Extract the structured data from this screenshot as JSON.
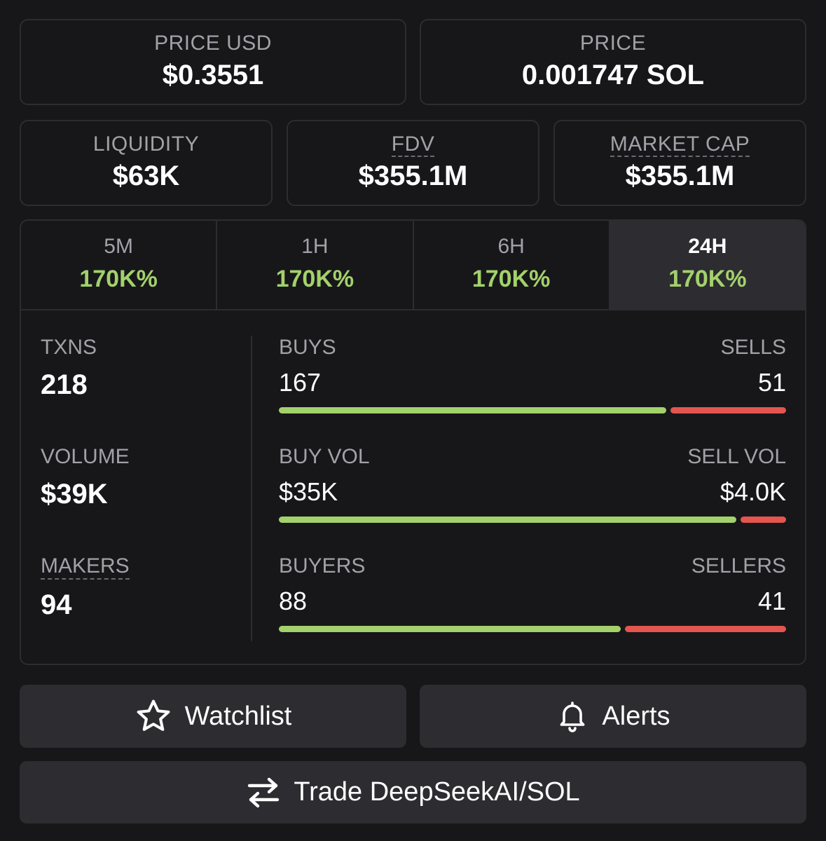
{
  "price_usd": {
    "label": "PRICE USD",
    "value": "$0.3551"
  },
  "price": {
    "label": "PRICE",
    "value": "0.001747 SOL"
  },
  "liquidity": {
    "label": "LIQUIDITY",
    "value": "$63K"
  },
  "fdv": {
    "label": "FDV",
    "value": "$355.1M"
  },
  "market_cap": {
    "label": "MARKET CAP",
    "value": "$355.1M"
  },
  "tabs": [
    {
      "label": "5M",
      "value": "170K%"
    },
    {
      "label": "1H",
      "value": "170K%"
    },
    {
      "label": "6H",
      "value": "170K%"
    },
    {
      "label": "24H",
      "value": "170K%",
      "active": true
    }
  ],
  "metrics": {
    "txns": {
      "label": "TXNS",
      "value": "218"
    },
    "volume": {
      "label": "VOLUME",
      "value": "$39K"
    },
    "makers": {
      "label": "MAKERS",
      "value": "94"
    }
  },
  "ratios": {
    "txns": {
      "left_label": "BUYS",
      "right_label": "SELLS",
      "left_value": "167",
      "right_value": "51",
      "buy_fraction": 0.77
    },
    "volume": {
      "left_label": "BUY VOL",
      "right_label": "SELL VOL",
      "left_value": "$35K",
      "right_value": "$4.0K",
      "buy_fraction": 0.91
    },
    "makers": {
      "left_label": "BUYERS",
      "right_label": "SELLERS",
      "left_value": "88",
      "right_value": "41",
      "buy_fraction": 0.68
    }
  },
  "buttons": {
    "watchlist": "Watchlist",
    "alerts": "Alerts",
    "trade": "Trade DeepSeekAI/SOL"
  },
  "colors": {
    "buy": "#a3d16b",
    "sell": "#e4554f",
    "accent_green": "#a3d16b"
  },
  "icons": {
    "watchlist": "star-icon",
    "alerts": "bell-icon",
    "trade": "swap-arrows-icon"
  }
}
